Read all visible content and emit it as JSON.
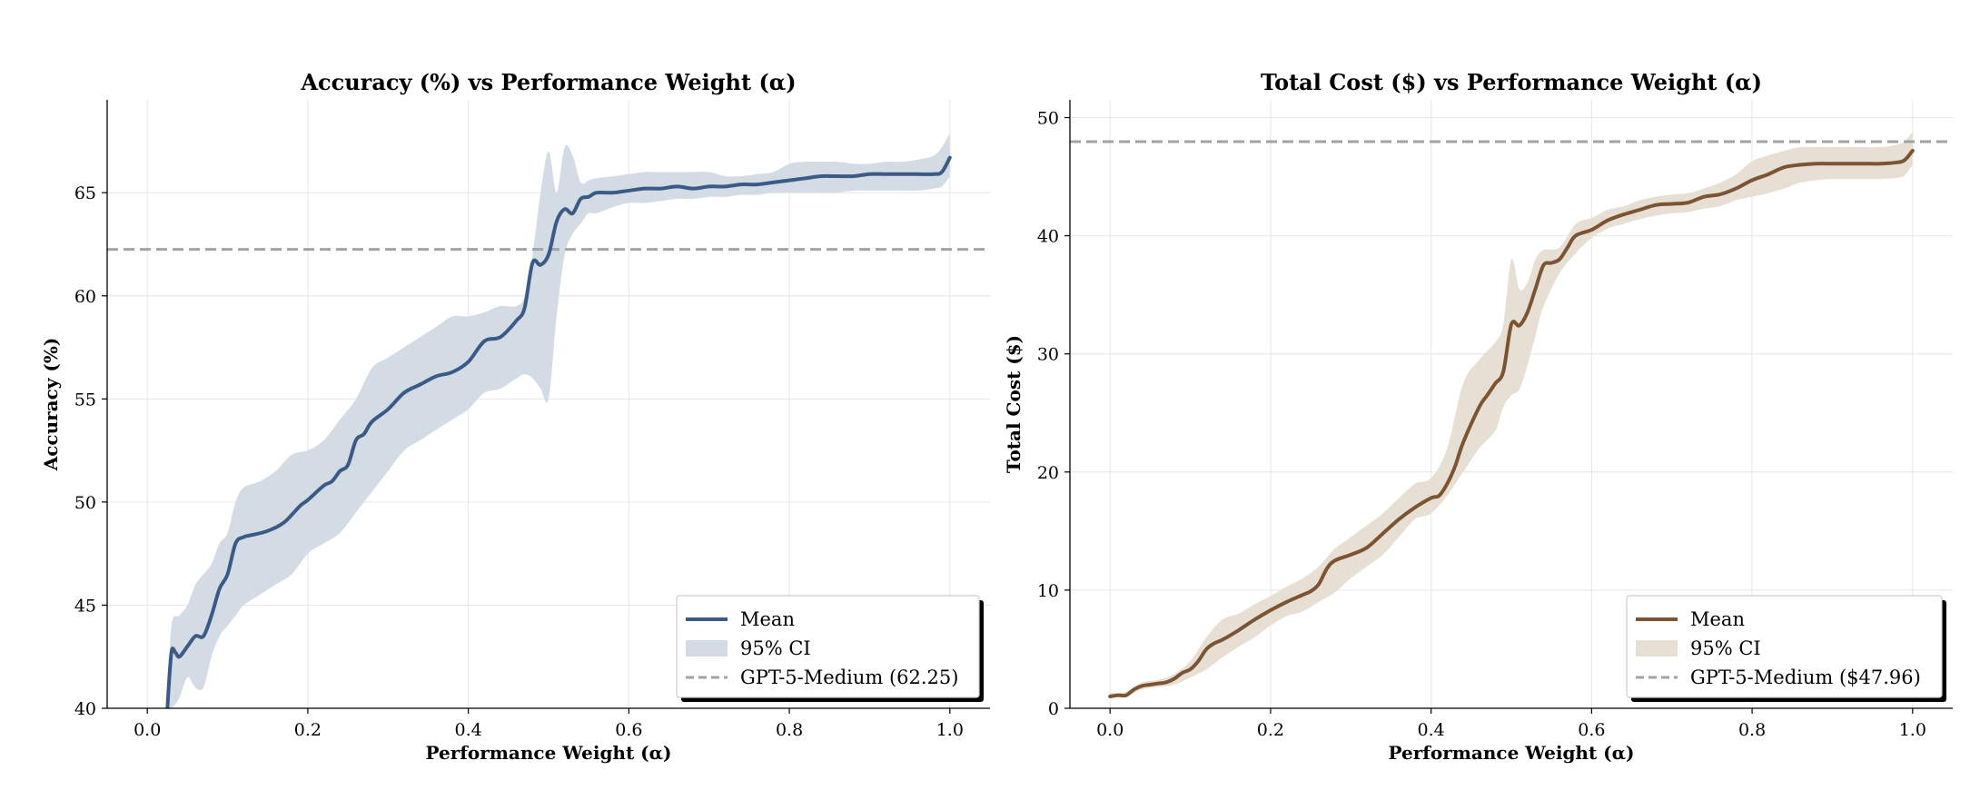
{
  "chart_data": [
    {
      "type": "line",
      "title": "Accuracy (%) vs Performance Weight (α)",
      "xlabel": "Performance Weight (α)",
      "ylabel": "Accuracy (%)",
      "xlim": [
        -0.05,
        1.05
      ],
      "ylim": [
        40,
        69.5
      ],
      "xticks": [
        0.0,
        0.2,
        0.4,
        0.6,
        0.8,
        1.0
      ],
      "xtick_labels": [
        "0.0",
        "0.2",
        "0.4",
        "0.6",
        "0.8",
        "1.0"
      ],
      "yticks": [
        40,
        45,
        50,
        55,
        60,
        65
      ],
      "ytick_labels": [
        "40",
        "45",
        "50",
        "55",
        "60",
        "65"
      ],
      "grid": true,
      "legend_position": "bottom-right",
      "color": "#3b5a85",
      "ci_color": "#d3dbe5",
      "ref_color": "#a3a3a3",
      "reference": {
        "label": "GPT-5-Medium (62.25)",
        "value": 62.25
      },
      "series": [
        {
          "name": "Mean",
          "x": [
            0.025,
            0.03,
            0.035,
            0.04,
            0.05,
            0.06,
            0.07,
            0.08,
            0.09,
            0.1,
            0.11,
            0.12,
            0.13,
            0.15,
            0.17,
            0.19,
            0.2,
            0.22,
            0.23,
            0.24,
            0.25,
            0.26,
            0.27,
            0.28,
            0.3,
            0.32,
            0.34,
            0.36,
            0.38,
            0.4,
            0.42,
            0.44,
            0.46,
            0.47,
            0.48,
            0.49,
            0.5,
            0.51,
            0.52,
            0.53,
            0.54,
            0.55,
            0.56,
            0.58,
            0.6,
            0.62,
            0.64,
            0.66,
            0.68,
            0.7,
            0.72,
            0.74,
            0.76,
            0.78,
            0.8,
            0.82,
            0.84,
            0.86,
            0.88,
            0.9,
            0.92,
            0.94,
            0.96,
            0.98,
            0.99,
            1.0
          ],
          "values": [
            40.0,
            42.7,
            42.7,
            42.5,
            43.0,
            43.5,
            43.5,
            44.5,
            45.8,
            46.5,
            48.0,
            48.3,
            48.4,
            48.6,
            49.0,
            49.8,
            50.1,
            50.8,
            51.0,
            51.5,
            51.8,
            53.0,
            53.3,
            53.9,
            54.5,
            55.3,
            55.7,
            56.1,
            56.3,
            56.8,
            57.8,
            58.0,
            58.8,
            59.4,
            61.6,
            61.5,
            62.0,
            63.6,
            64.2,
            64.0,
            64.7,
            64.8,
            65.0,
            65.0,
            65.1,
            65.2,
            65.2,
            65.3,
            65.2,
            65.3,
            65.3,
            65.4,
            65.4,
            65.5,
            65.6,
            65.7,
            65.8,
            65.8,
            65.8,
            65.9,
            65.9,
            65.9,
            65.9,
            65.9,
            66.0,
            66.7
          ]
        },
        {
          "name": "95% CI",
          "x": [
            0.025,
            0.03,
            0.04,
            0.05,
            0.06,
            0.07,
            0.08,
            0.09,
            0.1,
            0.11,
            0.12,
            0.14,
            0.16,
            0.18,
            0.2,
            0.22,
            0.24,
            0.26,
            0.28,
            0.3,
            0.32,
            0.34,
            0.36,
            0.38,
            0.4,
            0.42,
            0.44,
            0.46,
            0.47,
            0.48,
            0.49,
            0.5,
            0.51,
            0.52,
            0.53,
            0.54,
            0.55,
            0.56,
            0.58,
            0.6,
            0.62,
            0.64,
            0.66,
            0.68,
            0.7,
            0.72,
            0.74,
            0.76,
            0.78,
            0.8,
            0.82,
            0.84,
            0.86,
            0.88,
            0.9,
            0.92,
            0.94,
            0.96,
            0.98,
            0.99,
            1.0
          ],
          "lower": [
            40.0,
            40.0,
            40.5,
            41.5,
            41.0,
            41.0,
            42.5,
            43.5,
            44.0,
            44.5,
            45.0,
            45.5,
            46.0,
            46.5,
            47.5,
            48.0,
            48.5,
            49.5,
            50.5,
            51.5,
            52.5,
            53.0,
            53.5,
            54.0,
            54.5,
            55.3,
            55.5,
            56.0,
            56.2,
            56.0,
            55.5,
            55.0,
            59.0,
            62.0,
            63.0,
            63.5,
            64.0,
            64.0,
            64.3,
            64.5,
            64.5,
            64.6,
            64.7,
            64.7,
            64.8,
            64.8,
            64.9,
            64.9,
            65.0,
            65.0,
            65.0,
            65.0,
            65.0,
            65.1,
            65.1,
            65.1,
            65.1,
            65.1,
            65.2,
            65.3,
            65.8
          ],
          "upper": [
            40.0,
            44.0,
            44.5,
            45.0,
            46.0,
            46.5,
            47.0,
            48.0,
            48.5,
            50.0,
            50.7,
            51.0,
            51.5,
            52.3,
            52.5,
            53.0,
            54.0,
            55.0,
            56.5,
            57.0,
            57.5,
            58.0,
            58.5,
            59.0,
            59.0,
            59.2,
            59.5,
            59.5,
            60.0,
            62.0,
            65.0,
            67.0,
            65.0,
            67.2,
            66.8,
            65.5,
            65.6,
            65.7,
            65.8,
            65.9,
            66.0,
            66.0,
            66.0,
            66.0,
            66.0,
            65.8,
            65.8,
            65.9,
            66.0,
            66.4,
            66.5,
            66.5,
            66.5,
            66.4,
            66.4,
            66.5,
            66.5,
            66.6,
            66.8,
            67.2,
            67.9
          ]
        }
      ]
    },
    {
      "type": "line",
      "title": "Total Cost ($) vs Performance Weight (α)",
      "xlabel": "Performance Weight (α)",
      "ylabel": "Total Cost ($)",
      "xlim": [
        -0.05,
        1.05
      ],
      "ylim": [
        0,
        51.5
      ],
      "xticks": [
        0.0,
        0.2,
        0.4,
        0.6,
        0.8,
        1.0
      ],
      "xtick_labels": [
        "0.0",
        "0.2",
        "0.4",
        "0.6",
        "0.8",
        "1.0"
      ],
      "yticks": [
        0,
        10,
        20,
        30,
        40,
        50
      ],
      "ytick_labels": [
        "0",
        "10",
        "20",
        "30",
        "40",
        "50"
      ],
      "grid": true,
      "legend_position": "bottom-right",
      "color": "#7a5433",
      "ci_color": "#e8dfd4",
      "ref_color": "#a3a3a3",
      "reference": {
        "label": "GPT-5-Medium ($47.96)",
        "value": 47.96
      },
      "series": [
        {
          "name": "Mean",
          "x": [
            0.0,
            0.01,
            0.02,
            0.03,
            0.04,
            0.05,
            0.06,
            0.07,
            0.08,
            0.09,
            0.1,
            0.11,
            0.12,
            0.13,
            0.14,
            0.16,
            0.18,
            0.2,
            0.22,
            0.24,
            0.25,
            0.26,
            0.27,
            0.28,
            0.3,
            0.32,
            0.34,
            0.36,
            0.38,
            0.4,
            0.41,
            0.42,
            0.43,
            0.44,
            0.46,
            0.47,
            0.48,
            0.49,
            0.5,
            0.51,
            0.52,
            0.53,
            0.54,
            0.55,
            0.56,
            0.57,
            0.58,
            0.6,
            0.62,
            0.64,
            0.66,
            0.68,
            0.7,
            0.72,
            0.74,
            0.76,
            0.78,
            0.8,
            0.82,
            0.84,
            0.86,
            0.88,
            0.9,
            0.92,
            0.94,
            0.96,
            0.98,
            0.99,
            1.0
          ],
          "values": [
            1.0,
            1.1,
            1.1,
            1.6,
            1.9,
            2.0,
            2.1,
            2.2,
            2.5,
            3.0,
            3.3,
            4.0,
            5.0,
            5.5,
            5.8,
            6.6,
            7.5,
            8.3,
            9.0,
            9.6,
            9.9,
            10.5,
            11.8,
            12.5,
            13.0,
            13.6,
            14.8,
            16.0,
            17.0,
            17.8,
            18.0,
            19.0,
            20.5,
            22.5,
            25.5,
            26.5,
            27.5,
            28.5,
            32.5,
            32.4,
            33.5,
            35.5,
            37.5,
            37.7,
            38.0,
            39.0,
            40.0,
            40.5,
            41.3,
            41.8,
            42.2,
            42.6,
            42.7,
            42.8,
            43.3,
            43.5,
            44.0,
            44.7,
            45.2,
            45.8,
            46.0,
            46.1,
            46.1,
            46.1,
            46.1,
            46.1,
            46.2,
            46.4,
            47.2
          ]
        },
        {
          "name": "95% CI",
          "x": [
            0.0,
            0.02,
            0.04,
            0.06,
            0.08,
            0.1,
            0.12,
            0.14,
            0.16,
            0.18,
            0.2,
            0.22,
            0.24,
            0.26,
            0.28,
            0.3,
            0.32,
            0.34,
            0.36,
            0.38,
            0.4,
            0.42,
            0.44,
            0.46,
            0.48,
            0.49,
            0.5,
            0.51,
            0.52,
            0.53,
            0.54,
            0.56,
            0.58,
            0.6,
            0.62,
            0.64,
            0.66,
            0.68,
            0.7,
            0.72,
            0.74,
            0.76,
            0.78,
            0.8,
            0.82,
            0.84,
            0.86,
            0.88,
            0.9,
            0.92,
            0.94,
            0.96,
            0.98,
            0.99,
            1.0
          ],
          "lower": [
            1.0,
            1.0,
            1.6,
            1.8,
            2.0,
            2.6,
            3.3,
            4.3,
            5.2,
            6.0,
            7.0,
            7.8,
            8.2,
            9.0,
            9.8,
            11.0,
            12.0,
            13.0,
            14.5,
            16.0,
            16.5,
            18.0,
            20.0,
            22.0,
            23.5,
            25.5,
            26.5,
            27.0,
            29.0,
            31.5,
            34.0,
            36.8,
            38.5,
            39.8,
            40.6,
            41.0,
            41.4,
            41.7,
            41.9,
            42.0,
            42.3,
            42.5,
            43.0,
            43.3,
            43.6,
            44.0,
            44.5,
            44.7,
            44.8,
            44.8,
            44.8,
            44.8,
            44.9,
            45.1,
            46.0
          ],
          "upper": [
            1.3,
            1.4,
            2.2,
            2.4,
            2.9,
            4.0,
            6.0,
            7.5,
            8.0,
            8.8,
            9.5,
            10.3,
            11.0,
            12.0,
            13.5,
            14.5,
            15.5,
            16.5,
            17.8,
            19.0,
            19.5,
            22.0,
            27.5,
            29.5,
            31.0,
            32.5,
            38.0,
            35.5,
            36.0,
            38.0,
            38.8,
            39.0,
            41.0,
            41.5,
            42.2,
            42.5,
            43.0,
            43.3,
            43.5,
            43.6,
            44.0,
            44.5,
            45.2,
            46.3,
            46.8,
            47.2,
            47.5,
            47.5,
            47.5,
            47.5,
            47.5,
            47.5,
            47.7,
            48.0,
            48.8
          ]
        }
      ]
    }
  ]
}
